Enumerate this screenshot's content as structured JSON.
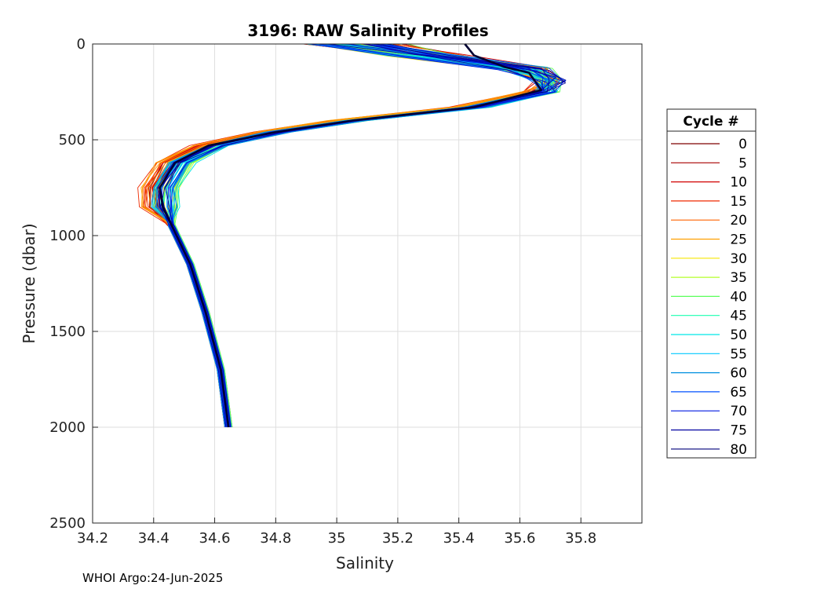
{
  "chart_data": {
    "type": "line",
    "title": "3196: RAW Salinity Profiles",
    "xlabel": "Salinity",
    "ylabel": "Pressure (dbar)",
    "xlim": [
      34.2,
      36.0
    ],
    "ylim": [
      0,
      2500
    ],
    "y_reversed": true,
    "grid": true,
    "x_ticks": [
      "34.2",
      "34.4",
      "34.6",
      "34.8",
      "35",
      "35.2",
      "35.4",
      "35.6",
      "35.8"
    ],
    "x_tick_values": [
      34.2,
      34.4,
      34.6,
      34.8,
      35.0,
      35.2,
      35.4,
      35.6,
      35.8
    ],
    "y_ticks": [
      "0",
      "500",
      "1000",
      "1500",
      "2000",
      "2500"
    ],
    "y_tick_values": [
      0,
      500,
      1000,
      1500,
      2000,
      2500
    ],
    "legend_title": "Cycle #",
    "legend_position": "outside-right",
    "legend": [
      {
        "label": "0",
        "color": "#7f0000"
      },
      {
        "label": "5",
        "color": "#a80000"
      },
      {
        "label": "10",
        "color": "#d10000"
      },
      {
        "label": "15",
        "color": "#ef2a00"
      },
      {
        "label": "20",
        "color": "#ff6400"
      },
      {
        "label": "25",
        "color": "#ffa000"
      },
      {
        "label": "30",
        "color": "#f7e600"
      },
      {
        "label": "35",
        "color": "#b4ff2a"
      },
      {
        "label": "40",
        "color": "#5aff5a"
      },
      {
        "label": "45",
        "color": "#1affb0"
      },
      {
        "label": "50",
        "color": "#00e6e6"
      },
      {
        "label": "55",
        "color": "#00c8ff"
      },
      {
        "label": "60",
        "color": "#0090e0"
      },
      {
        "label": "65",
        "color": "#0050ff"
      },
      {
        "label": "70",
        "color": "#0018e0"
      },
      {
        "label": "75",
        "color": "#0000a0"
      },
      {
        "label": "80",
        "color": "#00007a"
      }
    ],
    "base_profile": {
      "salinity": [
        35.05,
        35.3,
        35.62,
        35.7,
        35.68,
        35.45,
        35.05,
        34.8,
        34.6,
        34.48,
        34.43,
        34.43,
        34.46,
        34.52,
        34.57,
        34.62,
        34.645
      ],
      "pressure": [
        0,
        60,
        130,
        190,
        250,
        330,
        400,
        460,
        530,
        620,
        750,
        850,
        950,
        1150,
        1400,
        1700,
        2000
      ]
    },
    "highlight_profile": {
      "salinity": [
        35.42,
        35.45,
        35.55,
        35.63,
        35.67,
        35.45,
        35.05,
        34.8,
        34.58,
        34.47,
        34.42,
        34.43,
        34.46,
        34.52,
        34.57,
        34.62,
        34.645
      ],
      "pressure": [
        0,
        60,
        120,
        150,
        240,
        330,
        400,
        460,
        530,
        620,
        750,
        850,
        950,
        1150,
        1400,
        1700,
        2000
      ]
    }
  },
  "footer": "WHOI Argo:24-Jun-2025"
}
